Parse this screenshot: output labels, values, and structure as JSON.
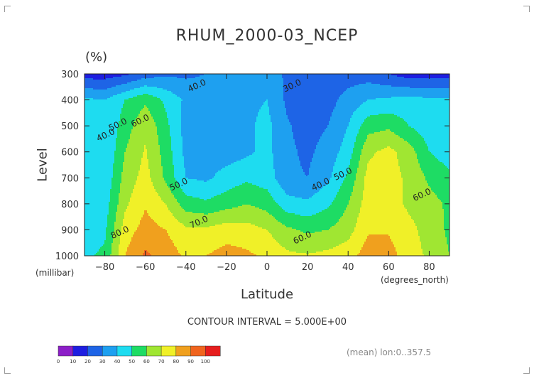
{
  "chart_data": {
    "type": "heatmap",
    "title": "RHUM_2000-03_NCEP",
    "unit_label": "(%)",
    "ylabel": "Level",
    "y_unit": "(millibar)",
    "xlabel": "Latitude",
    "x_unit": "(degrees_north)",
    "contour_interval_text": "CONTOUR INTERVAL = 5.000E+00",
    "footnote": "(mean) lon:0..357.5",
    "xlim": [
      -90,
      90
    ],
    "ylim": [
      1000,
      300
    ],
    "x_ticks": [
      -80,
      -60,
      -40,
      -20,
      0,
      20,
      40,
      60,
      80
    ],
    "y_ticks": [
      300,
      400,
      500,
      600,
      700,
      800,
      900,
      1000
    ],
    "levels": [
      0,
      10,
      20,
      30,
      40,
      50,
      60,
      70,
      80,
      90,
      100
    ],
    "level_colors": [
      "#8c1ec8",
      "#1e1ee0",
      "#1e64e6",
      "#1ea0f0",
      "#1edcf0",
      "#1edc64",
      "#a0e632",
      "#f0f028",
      "#f0a01e",
      "#f0641e",
      "#e61e1e"
    ],
    "x": [
      -90,
      -80,
      -70,
      -60,
      -50,
      -40,
      -30,
      -20,
      -10,
      0,
      10,
      20,
      30,
      40,
      50,
      60,
      70,
      80,
      90
    ],
    "y": [
      300,
      400,
      500,
      600,
      700,
      800,
      900,
      1000
    ],
    "values": [
      [
        15,
        15,
        18,
        25,
        28,
        28,
        30,
        33,
        36,
        36,
        28,
        28,
        25,
        25,
        25,
        20,
        15,
        15,
        15
      ],
      [
        42,
        40,
        50,
        58,
        48,
        38,
        36,
        36,
        38,
        40,
        28,
        24,
        26,
        34,
        40,
        42,
        44,
        42,
        42
      ],
      [
        42,
        40,
        55,
        68,
        53,
        36,
        34,
        33,
        38,
        43,
        31,
        26,
        30,
        40,
        56,
        58,
        50,
        44,
        42
      ],
      [
        40,
        40,
        60,
        71,
        56,
        37,
        35,
        35,
        38,
        43,
        32,
        28,
        34,
        45,
        68,
        73,
        65,
        50,
        45
      ],
      [
        40,
        42,
        64,
        74,
        58,
        40,
        38,
        44,
        48,
        45,
        32,
        30,
        38,
        52,
        74,
        74,
        68,
        58,
        52
      ],
      [
        42,
        45,
        68,
        79,
        70,
        55,
        52,
        56,
        60,
        56,
        44,
        42,
        48,
        60,
        75,
        75,
        68,
        64,
        58
      ],
      [
        45,
        48,
        75,
        84,
        80,
        72,
        72,
        75,
        74,
        70,
        62,
        58,
        60,
        66,
        79,
        79,
        73,
        66,
        58
      ],
      [
        48,
        52,
        80,
        92,
        86,
        78,
        80,
        84,
        82,
        78,
        72,
        71,
        73,
        76,
        85,
        84,
        75,
        68,
        60
      ]
    ],
    "contour_labels": [
      {
        "text": "40.0",
        "x": -34,
        "y": 355
      },
      {
        "text": "30.0",
        "x": 13,
        "y": 355
      },
      {
        "text": "50.0",
        "x": -73,
        "y": 505
      },
      {
        "text": "40.0",
        "x": -79,
        "y": 545
      },
      {
        "text": "60.0",
        "x": -62,
        "y": 490
      },
      {
        "text": "50.0",
        "x": -43,
        "y": 735
      },
      {
        "text": "40.0",
        "x": 27,
        "y": 735
      },
      {
        "text": "50.0",
        "x": 38,
        "y": 695
      },
      {
        "text": "60.0",
        "x": 77,
        "y": 775
      },
      {
        "text": "70.0",
        "x": -33,
        "y": 880
      },
      {
        "text": "60.0",
        "x": 18,
        "y": 940
      },
      {
        "text": "80.0",
        "x": -72,
        "y": 920
      }
    ]
  }
}
